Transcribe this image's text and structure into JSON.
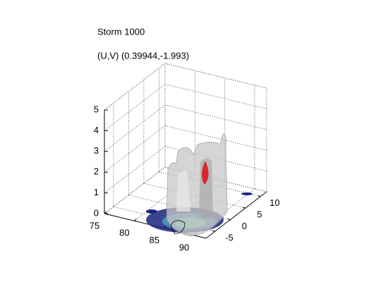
{
  "chart_data": {
    "type": "surface3d",
    "title": "Storm 1000",
    "subtitle": "(U,V) (0.39944,-1.993)",
    "xlim": [
      75,
      92
    ],
    "xticks": [
      75,
      80,
      85,
      90
    ],
    "ylim": [
      -8,
      12
    ],
    "yticks": [
      -5,
      0,
      5,
      10
    ],
    "zlim": [
      0,
      5
    ],
    "zticks": [
      0,
      1,
      2,
      3,
      4,
      5
    ],
    "grid": true
  }
}
